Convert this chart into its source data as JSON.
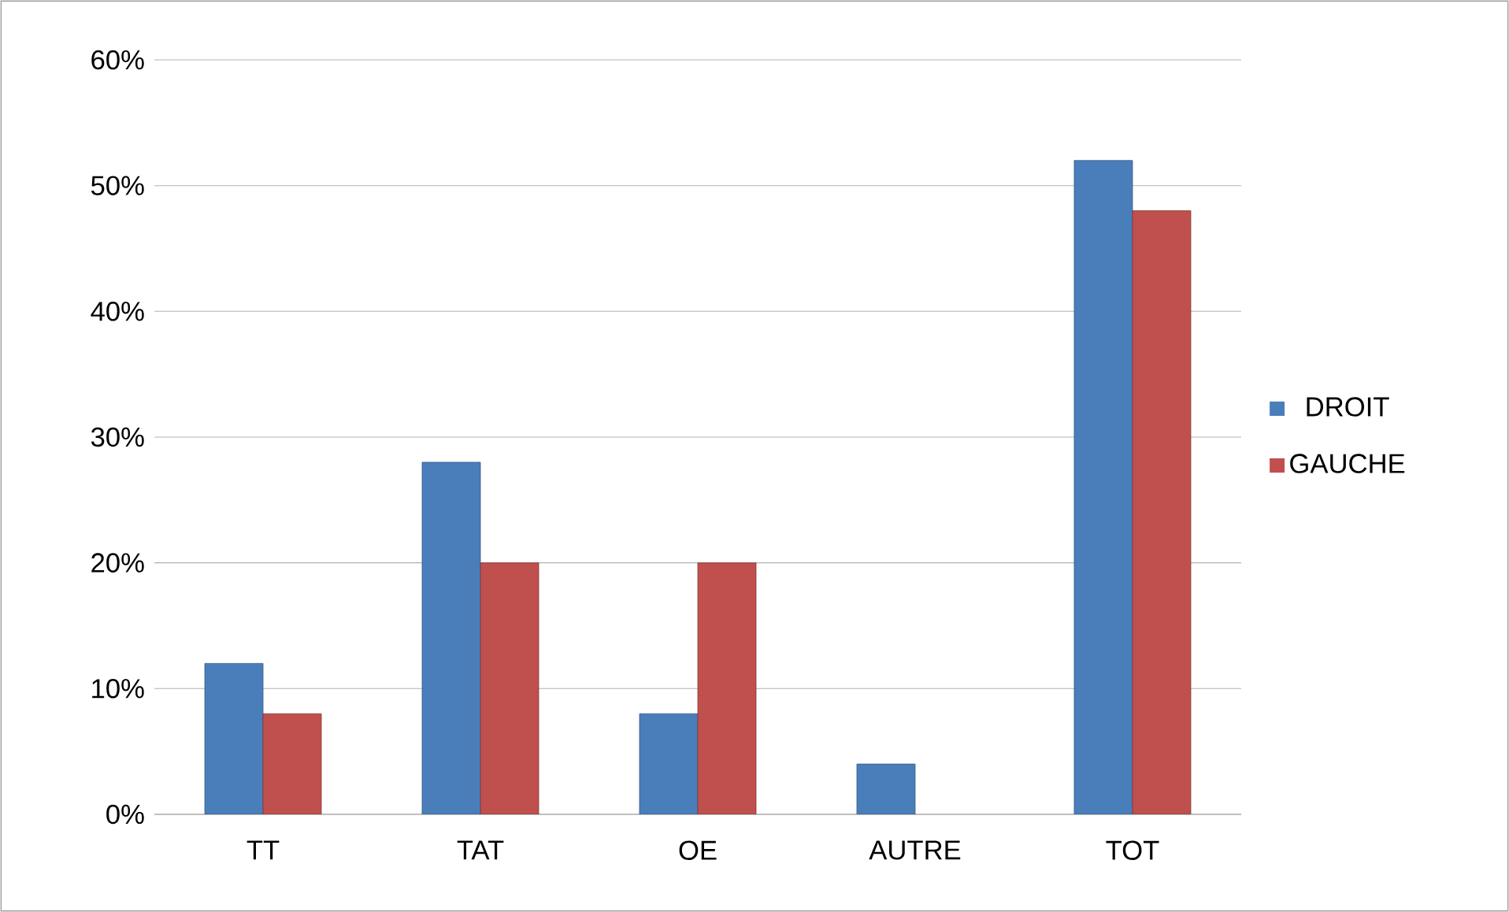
{
  "chart_data": {
    "type": "bar",
    "categories": [
      "TT",
      "TAT",
      "OE",
      "AUTRE",
      "TOT"
    ],
    "series": [
      {
        "name": "DROIT",
        "color": "#4a7ebb",
        "values": [
          12,
          28,
          8,
          4,
          52
        ]
      },
      {
        "name": "GAUCHE",
        "color": "#c0504d",
        "values": [
          8,
          20,
          20,
          null,
          48
        ]
      }
    ],
    "ylim": [
      0,
      60
    ],
    "yticks": [
      {
        "value": 0,
        "label": "0%"
      },
      {
        "value": 10,
        "label": "10%"
      },
      {
        "value": 20,
        "label": "20%"
      },
      {
        "value": 30,
        "label": "30%"
      },
      {
        "value": 40,
        "label": "40%"
      },
      {
        "value": 50,
        "label": "50%"
      },
      {
        "value": 60,
        "label": "60%"
      }
    ],
    "grid": "y",
    "legend": "right"
  }
}
